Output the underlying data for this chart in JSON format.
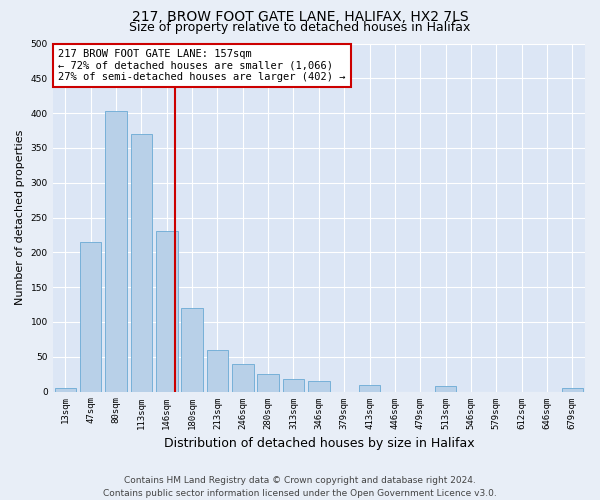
{
  "title1": "217, BROW FOOT GATE LANE, HALIFAX, HX2 7LS",
  "title2": "Size of property relative to detached houses in Halifax",
  "xlabel": "Distribution of detached houses by size in Halifax",
  "ylabel": "Number of detached properties",
  "bins": [
    "13sqm",
    "47sqm",
    "80sqm",
    "113sqm",
    "146sqm",
    "180sqm",
    "213sqm",
    "246sqm",
    "280sqm",
    "313sqm",
    "346sqm",
    "379sqm",
    "413sqm",
    "446sqm",
    "479sqm",
    "513sqm",
    "546sqm",
    "579sqm",
    "612sqm",
    "646sqm",
    "679sqm"
  ],
  "bin_edges": [
    13,
    47,
    80,
    113,
    146,
    180,
    213,
    246,
    280,
    313,
    346,
    379,
    413,
    446,
    479,
    513,
    546,
    579,
    612,
    646,
    679
  ],
  "counts": [
    5,
    215,
    403,
    370,
    230,
    120,
    60,
    40,
    25,
    18,
    15,
    0,
    10,
    0,
    0,
    8,
    0,
    0,
    0,
    0,
    5
  ],
  "bar_color": "#b8d0e8",
  "bar_edge_color": "#6aaad4",
  "vline_x": 157,
  "vline_color": "#cc0000",
  "annotation_line1": "217 BROW FOOT GATE LANE: 157sqm",
  "annotation_line2": "← 72% of detached houses are smaller (1,066)",
  "annotation_line3": "27% of semi-detached houses are larger (402) →",
  "annotation_box_color": "#ffffff",
  "annotation_box_edge": "#cc0000",
  "ylim": [
    0,
    500
  ],
  "yticks": [
    0,
    50,
    100,
    150,
    200,
    250,
    300,
    350,
    400,
    450,
    500
  ],
  "bg_color": "#e8eef7",
  "plot_bg_color": "#dce6f5",
  "footer": "Contains HM Land Registry data © Crown copyright and database right 2024.\nContains public sector information licensed under the Open Government Licence v3.0.",
  "title1_fontsize": 10,
  "title2_fontsize": 9,
  "xlabel_fontsize": 9,
  "ylabel_fontsize": 8,
  "annot_fontsize": 7.5,
  "footer_fontsize": 6.5,
  "tick_fontsize": 6.5
}
